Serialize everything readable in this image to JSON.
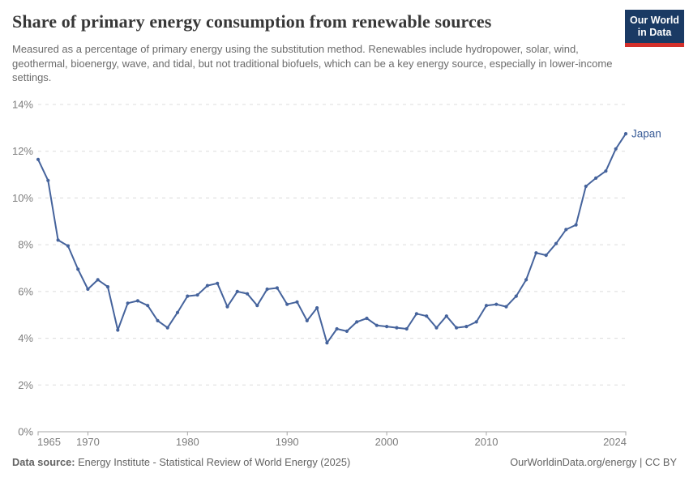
{
  "header": {
    "title": "Share of primary energy consumption from renewable sources",
    "subtitle": "Measured as a percentage of primary energy using the substitution method. Renewables include hydropower, solar, wind, geothermal, bioenergy, wave, and tidal, but not traditional biofuels, which can be a key energy source, especially in lower-income settings.",
    "logo": {
      "line1": "Our World",
      "line2": "in Data"
    }
  },
  "footer": {
    "source_label": "Data source:",
    "source_text": " Energy Institute - Statistical Review of World Energy (2025)",
    "attribution": "OurWorldinData.org/energy | CC BY"
  },
  "colors": {
    "line": "#45639c",
    "end_label": "#3d5f99",
    "grid": "#dcdcdc",
    "axis": "#a6a6a6",
    "tick_text": "#7d7d7d",
    "logo_bg": "#1a3a64",
    "logo_red": "#d3302b",
    "title_text": "#373737",
    "subtitle_text": "#6b6b6b",
    "footer_text": "#636363"
  },
  "chart_data": {
    "type": "line",
    "title": "Share of primary energy consumption from renewable sources",
    "xlabel": "",
    "ylabel": "",
    "ylim": [
      0,
      14
    ],
    "yticks": [
      0,
      2,
      4,
      6,
      8,
      10,
      12,
      14
    ],
    "ytick_labels": [
      "0%",
      "2%",
      "4%",
      "6%",
      "8%",
      "10%",
      "12%",
      "14%"
    ],
    "xticks": [
      1965,
      1970,
      1980,
      1990,
      2000,
      2010,
      2024
    ],
    "grid": "dashed horizontal",
    "legend_position": "end-of-line label",
    "series": [
      {
        "name": "Japan",
        "x": [
          1965,
          1966,
          1967,
          1968,
          1969,
          1970,
          1971,
          1972,
          1973,
          1974,
          1975,
          1976,
          1977,
          1978,
          1979,
          1980,
          1981,
          1982,
          1983,
          1984,
          1985,
          1986,
          1987,
          1988,
          1989,
          1990,
          1991,
          1992,
          1993,
          1994,
          1995,
          1996,
          1997,
          1998,
          1999,
          2000,
          2001,
          2002,
          2003,
          2004,
          2005,
          2006,
          2007,
          2008,
          2009,
          2010,
          2011,
          2012,
          2013,
          2014,
          2015,
          2016,
          2017,
          2018,
          2019,
          2020,
          2021,
          2022,
          2023,
          2024
        ],
        "values": [
          11.65,
          10.75,
          8.2,
          7.95,
          6.95,
          6.1,
          6.5,
          6.2,
          4.35,
          5.5,
          5.6,
          5.4,
          4.75,
          4.45,
          5.1,
          5.8,
          5.85,
          6.25,
          6.35,
          5.35,
          6.0,
          5.9,
          5.4,
          6.1,
          6.15,
          5.45,
          5.55,
          4.75,
          5.3,
          3.8,
          4.4,
          4.3,
          4.7,
          4.85,
          4.55,
          4.5,
          4.45,
          4.4,
          5.05,
          4.95,
          4.45,
          4.95,
          4.45,
          4.5,
          4.7,
          5.4,
          5.45,
          5.35,
          5.8,
          6.5,
          7.65,
          7.55,
          8.05,
          8.65,
          8.85,
          10.5,
          10.85,
          11.15,
          12.1,
          12.75
        ]
      }
    ]
  }
}
